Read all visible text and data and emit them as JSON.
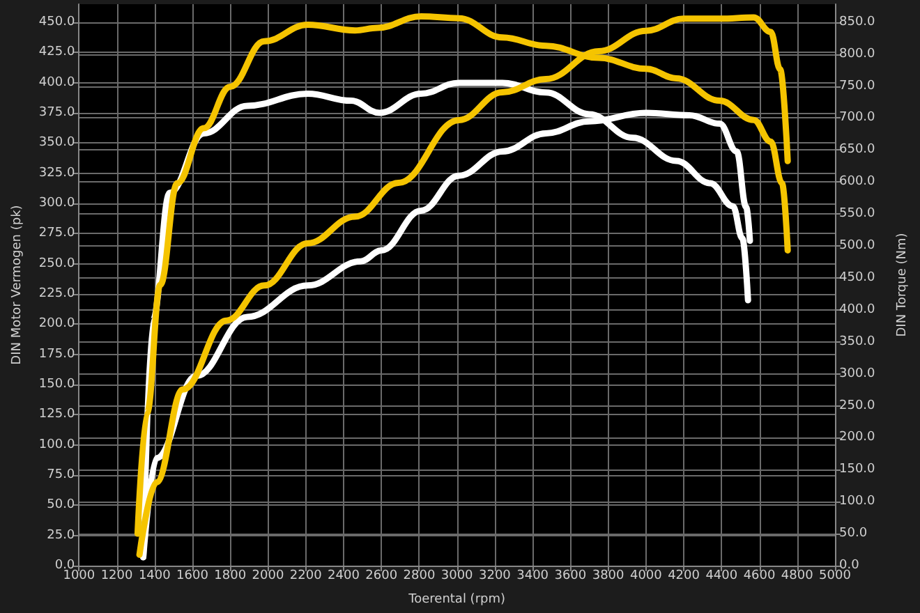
{
  "chart_data": {
    "type": "line",
    "xlabel": "Toerental (rpm)",
    "ylabel": "DIN Motor Vermogen (pk)",
    "y2label": "DIN Torque (Nm)",
    "xlim": [
      1000,
      5000
    ],
    "xticks": [
      1000,
      1200,
      1400,
      1600,
      1800,
      2000,
      2200,
      2400,
      2600,
      2800,
      3000,
      3200,
      3400,
      3600,
      3800,
      4000,
      4200,
      4400,
      4600,
      4800,
      5000
    ],
    "ylim": [
      0,
      465
    ],
    "yticks": [
      {
        "value": 0,
        "label": "0.0"
      },
      {
        "value": 25,
        "label": "25.0"
      },
      {
        "value": 50,
        "label": "50.0"
      },
      {
        "value": 75,
        "label": "75.0"
      },
      {
        "value": 100,
        "label": "100.0"
      },
      {
        "value": 125,
        "label": "125.0"
      },
      {
        "value": 150,
        "label": "150.0"
      },
      {
        "value": 175,
        "label": "175.0"
      },
      {
        "value": 200,
        "label": "200.0"
      },
      {
        "value": 225,
        "label": "225.0"
      },
      {
        "value": 250,
        "label": "250.0"
      },
      {
        "value": 275,
        "label": "275.0"
      },
      {
        "value": 300,
        "label": "300.0"
      },
      {
        "value": 325,
        "label": "325.0"
      },
      {
        "value": 350,
        "label": "350.0"
      },
      {
        "value": 375,
        "label": "375.0"
      },
      {
        "value": 400,
        "label": "400.0"
      },
      {
        "value": 425,
        "label": "425.0"
      },
      {
        "value": 450,
        "label": "450.0"
      }
    ],
    "y2lim": [
      0,
      878
    ],
    "y2ticks": [
      {
        "value": 0,
        "label": "0.0"
      },
      {
        "value": 50,
        "label": "50.0"
      },
      {
        "value": 100,
        "label": "100.0"
      },
      {
        "value": 150,
        "label": "150.0"
      },
      {
        "value": 200,
        "label": "200.0"
      },
      {
        "value": 250,
        "label": "250.0"
      },
      {
        "value": 300,
        "label": "300.0"
      },
      {
        "value": 350,
        "label": "350.0"
      },
      {
        "value": 400,
        "label": "400.0"
      },
      {
        "value": 450,
        "label": "450.0"
      },
      {
        "value": 500,
        "label": "500.0"
      },
      {
        "value": 550,
        "label": "550.0"
      },
      {
        "value": 600,
        "label": "600.0"
      },
      {
        "value": 650,
        "label": "650.0"
      },
      {
        "value": 700,
        "label": "700.0"
      },
      {
        "value": 750,
        "label": "750.0"
      },
      {
        "value": 800,
        "label": "800.0"
      },
      {
        "value": 850,
        "label": "850.0"
      }
    ],
    "grid": true,
    "marker": "none",
    "line_style": "solid",
    "series": [
      {
        "color": "#ffffff",
        "x": [
          1340,
          1410,
          1620,
          1890,
          2210,
          2490,
          2600,
          2810,
          3010,
          3240,
          3470,
          3700,
          4000,
          4230,
          4390,
          4480,
          4530,
          4550
        ],
        "values": [
          7,
          89,
          157,
          206,
          232,
          252,
          261,
          294,
          323,
          343,
          358,
          368,
          375,
          373,
          366,
          343,
          297,
          269
        ]
      },
      {
        "color": "#ffffff",
        "axis": "y2",
        "x": [
          1340,
          1390,
          1480,
          1660,
          1890,
          2210,
          2440,
          2590,
          2810,
          3010,
          3240,
          3470,
          3700,
          3930,
          4160,
          4340,
          4460,
          4510,
          4540
        ],
        "values": [
          13,
          383,
          583,
          676,
          719,
          738,
          727,
          708,
          738,
          755,
          755,
          740,
          706,
          669,
          633,
          598,
          562,
          512,
          415
        ]
      },
      {
        "color": "#f5c400",
        "x": [
          1320,
          1410,
          1550,
          1780,
          1980,
          2210,
          2460,
          2690,
          3010,
          3240,
          3470,
          3750,
          4000,
          4200,
          4390,
          4570,
          4660,
          4710,
          4750
        ],
        "values": [
          9,
          69,
          146,
          203,
          232,
          267,
          289,
          317,
          369,
          392,
          403,
          426,
          443,
          453,
          453,
          454,
          442,
          411,
          335
        ]
      },
      {
        "color": "#f5c400",
        "axis": "y2",
        "x": [
          1310,
          1360,
          1430,
          1520,
          1660,
          1800,
          1980,
          2210,
          2460,
          2580,
          2810,
          3010,
          3240,
          3470,
          3750,
          4000,
          4160,
          4390,
          4570,
          4660,
          4720,
          4750
        ],
        "values": [
          50,
          239,
          439,
          598,
          684,
          749,
          820,
          846,
          837,
          841,
          859,
          856,
          826,
          813,
          794,
          777,
          762,
          727,
          697,
          663,
          598,
          493
        ]
      }
    ]
  }
}
